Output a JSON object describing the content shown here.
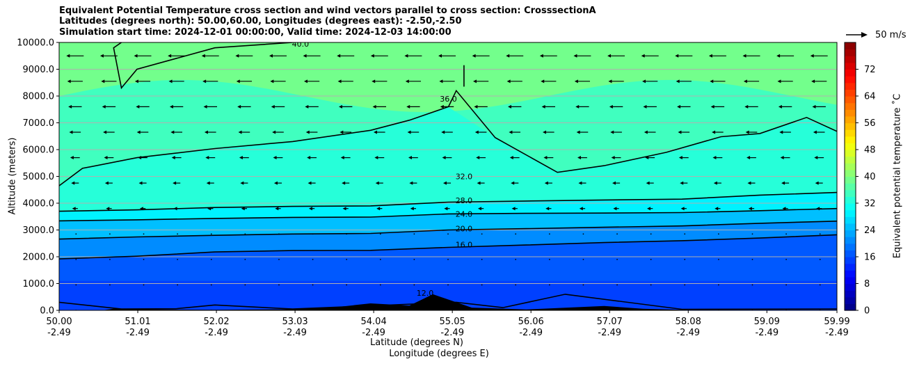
{
  "title_lines": [
    "Equivalent Potential Temperature cross section and wind vectors parallel to cross section: CrosssectionA",
    "Latitudes (degrees north): 50.00,60.00, Longitudes (degrees east): -2.50,-2.50",
    "Simulation start time: 2024-12-01 00:00:00, Valid time: 2024-12-03 14:00:00"
  ],
  "reference_vector_label": "50 m/s",
  "chart_data": {
    "type": "contourf",
    "title": "Equivalent Potential Temperature cross section and wind vectors parallel to cross section: CrosssectionA",
    "xlabel": "Latitude (degrees N)",
    "xlabel2": "Longitude (degrees E)",
    "ylabel": "Altitude (meters)",
    "xlim": [
      50.0,
      59.99
    ],
    "ylim": [
      0,
      10000
    ],
    "x_ticks": [
      50.0,
      51.01,
      52.02,
      53.03,
      54.04,
      55.05,
      56.06,
      57.07,
      58.08,
      59.09,
      59.99
    ],
    "x_tick_labels": [
      "50.00",
      "51.01",
      "52.02",
      "53.03",
      "54.04",
      "55.05",
      "56.06",
      "57.07",
      "58.08",
      "59.09",
      "59.99"
    ],
    "x_tick_labels2": [
      "-2.49",
      "-2.49",
      "-2.49",
      "-2.49",
      "-2.49",
      "-2.49",
      "-2.49",
      "-2.49",
      "-2.49",
      "-2.49",
      "-2.49"
    ],
    "y_ticks": [
      0,
      1000,
      2000,
      3000,
      4000,
      5000,
      6000,
      7000,
      8000,
      9000,
      10000
    ],
    "y_tick_labels": [
      "0.0",
      "1000.0",
      "2000.0",
      "3000.0",
      "4000.0",
      "5000.0",
      "6000.0",
      "7000.0",
      "8000.0",
      "9000.0",
      "10000.0"
    ],
    "grid": "horizontal",
    "colorbar": {
      "label": "Equivalent potential temperature ˚C",
      "min": 0,
      "max": 80,
      "step": 2,
      "ticks": [
        0,
        8,
        16,
        24,
        32,
        40,
        48,
        56,
        64,
        72
      ],
      "tick_labels": [
        "0",
        "8",
        "16",
        "24",
        "32",
        "40",
        "48",
        "56",
        "64",
        "72"
      ]
    },
    "contour_lines": [
      {
        "level": 12.0,
        "label": "12.0",
        "profile": [
          [
            50.0,
            300
          ],
          [
            50.8,
            50
          ],
          [
            51.5,
            60
          ],
          [
            52.0,
            200
          ],
          [
            53.0,
            50
          ],
          [
            55.1,
            300
          ],
          [
            55.7,
            100
          ],
          [
            56.5,
            600
          ],
          [
            58.0,
            40
          ],
          [
            59.99,
            50
          ]
        ]
      },
      {
        "level": 16.0,
        "label": "16.0",
        "profile": [
          [
            50.0,
            1920
          ],
          [
            51.0,
            2020
          ],
          [
            52.0,
            2180
          ],
          [
            53.0,
            2230
          ],
          [
            54.0,
            2240
          ],
          [
            55.0,
            2350
          ],
          [
            56.0,
            2440
          ],
          [
            57.0,
            2530
          ],
          [
            58.0,
            2600
          ],
          [
            59.0,
            2700
          ],
          [
            59.99,
            2820
          ]
        ]
      },
      {
        "level": 20.0,
        "label": "20.0",
        "profile": [
          [
            50.0,
            2660
          ],
          [
            51.0,
            2740
          ],
          [
            52.0,
            2800
          ],
          [
            53.0,
            2850
          ],
          [
            54.0,
            2870
          ],
          [
            55.0,
            3000
          ],
          [
            56.0,
            3050
          ],
          [
            57.0,
            3100
          ],
          [
            58.0,
            3150
          ],
          [
            59.0,
            3250
          ],
          [
            59.99,
            3330
          ]
        ]
      },
      {
        "level": 24.0,
        "label": "24.0",
        "profile": [
          [
            50.0,
            3340
          ],
          [
            51.0,
            3380
          ],
          [
            52.0,
            3430
          ],
          [
            53.0,
            3470
          ],
          [
            54.0,
            3480
          ],
          [
            55.0,
            3600
          ],
          [
            56.0,
            3620
          ],
          [
            57.0,
            3630
          ],
          [
            58.0,
            3650
          ],
          [
            59.0,
            3720
          ],
          [
            59.99,
            3800
          ]
        ]
      },
      {
        "level": 28.0,
        "label": "28.0",
        "profile": [
          [
            50.0,
            3700
          ],
          [
            51.0,
            3750
          ],
          [
            52.0,
            3840
          ],
          [
            53.0,
            3880
          ],
          [
            54.0,
            3900
          ],
          [
            55.0,
            4040
          ],
          [
            56.0,
            4080
          ],
          [
            57.0,
            4120
          ],
          [
            58.0,
            4150
          ],
          [
            59.0,
            4300
          ],
          [
            59.99,
            4400
          ]
        ]
      },
      {
        "level": 32.0,
        "label": "32.0",
        "profile": [
          [
            50.0,
            4650
          ],
          [
            50.3,
            5300
          ],
          [
            51.0,
            5700
          ],
          [
            52.0,
            6040
          ],
          [
            53.0,
            6300
          ],
          [
            54.0,
            6720
          ],
          [
            54.5,
            7100
          ],
          [
            55.0,
            7600
          ],
          [
            55.1,
            8200
          ],
          [
            55.6,
            6450
          ],
          [
            56.4,
            5150
          ],
          [
            57.0,
            5400
          ],
          [
            57.8,
            5900
          ],
          [
            58.5,
            6480
          ],
          [
            59.0,
            6600
          ],
          [
            59.6,
            7200
          ],
          [
            59.99,
            6680
          ]
        ]
      },
      {
        "level": 36.0,
        "label": "36.0",
        "profile": [
          [
            55.2,
            8350
          ],
          [
            55.2,
            9150
          ]
        ]
      },
      {
        "level": 40.0,
        "label": "40.0",
        "profile": [
          [
            50.8,
            10000
          ],
          [
            50.7,
            9800
          ],
          [
            50.8,
            8300
          ],
          [
            51.0,
            9000
          ],
          [
            52.0,
            9800
          ],
          [
            53.0,
            10000
          ]
        ]
      }
    ],
    "wind_vectors": {
      "direction": "toward decreasing latitude",
      "reference_speed": 50,
      "reference_units": "m/s"
    }
  }
}
